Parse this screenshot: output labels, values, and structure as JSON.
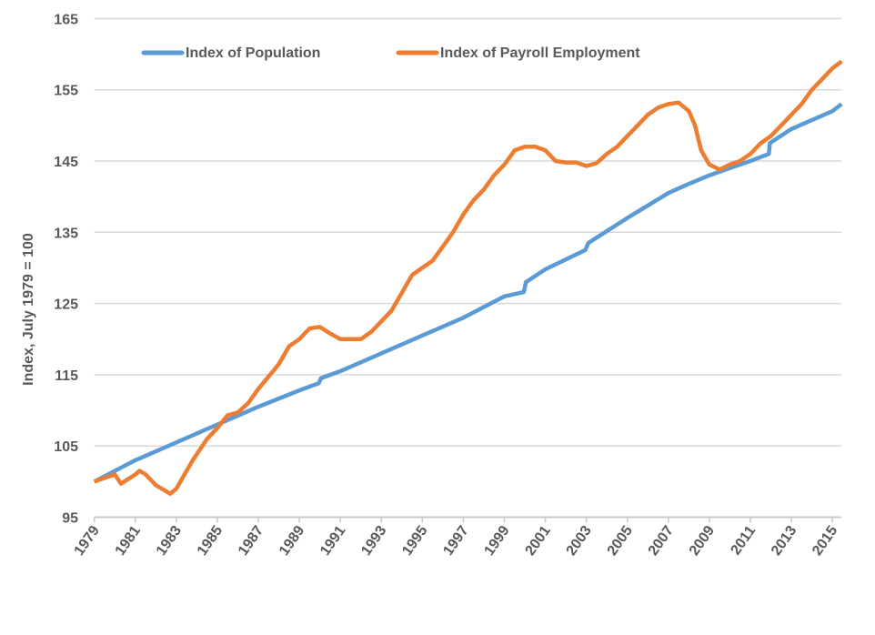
{
  "chart_data": {
    "type": "line",
    "title": "",
    "xlabel": "",
    "ylabel": "Index, July 1979 = 100",
    "ylim": [
      95,
      165
    ],
    "yticks": [
      95,
      105,
      115,
      125,
      135,
      145,
      155,
      165
    ],
    "xlim": [
      1979,
      2015.45
    ],
    "xticks": [
      "1979",
      "1981",
      "1983",
      "1985",
      "1987",
      "1989",
      "1991",
      "1993",
      "1995",
      "1997",
      "1999",
      "2001",
      "2003",
      "2005",
      "2007",
      "2009",
      "2011",
      "2013",
      "2015"
    ],
    "grid": true,
    "legend": "top-left",
    "series": [
      {
        "name": "Index of Population",
        "color": "#5B9BD5",
        "points": [
          [
            1979,
            100
          ],
          [
            1981,
            103
          ],
          [
            1983,
            105.5
          ],
          [
            1985,
            108
          ],
          [
            1987,
            110.5
          ],
          [
            1989,
            112.8
          ],
          [
            1989.95,
            113.8
          ],
          [
            1990.05,
            114.5
          ],
          [
            1991,
            115.5
          ],
          [
            1993,
            118
          ],
          [
            1995,
            120.5
          ],
          [
            1997,
            123
          ],
          [
            1999,
            126
          ],
          [
            1999.95,
            126.6
          ],
          [
            2000.05,
            128
          ],
          [
            2001,
            129.8
          ],
          [
            2002.95,
            132.5
          ],
          [
            2003.1,
            133.5
          ],
          [
            2005,
            137
          ],
          [
            2007,
            140.5
          ],
          [
            2008,
            141.8
          ],
          [
            2009,
            143
          ],
          [
            2010,
            144
          ],
          [
            2011,
            145
          ],
          [
            2011.9,
            146
          ],
          [
            2011.95,
            147.5
          ],
          [
            2013,
            149.5
          ],
          [
            2015,
            152
          ],
          [
            2015.45,
            153
          ]
        ]
      },
      {
        "name": "Index of Payroll Employment",
        "color": "#ED7D31",
        "points": [
          [
            1979,
            100
          ],
          [
            1979.5,
            100.5
          ],
          [
            1980,
            101
          ],
          [
            1980.3,
            99.7
          ],
          [
            1981,
            101
          ],
          [
            1981.2,
            101.5
          ],
          [
            1981.5,
            101
          ],
          [
            1982,
            99.5
          ],
          [
            1982.7,
            98.3
          ],
          [
            1983,
            99
          ],
          [
            1983.3,
            100.5
          ],
          [
            1983.8,
            103
          ],
          [
            1984.5,
            106
          ],
          [
            1985,
            107.5
          ],
          [
            1985.5,
            109.3
          ],
          [
            1986,
            109.7
          ],
          [
            1986.5,
            111
          ],
          [
            1987,
            113
          ],
          [
            1988,
            116.5
          ],
          [
            1988.5,
            119
          ],
          [
            1989,
            120
          ],
          [
            1989.5,
            121.5
          ],
          [
            1990,
            121.7
          ],
          [
            1990.5,
            120.8
          ],
          [
            1991,
            120
          ],
          [
            1992,
            120
          ],
          [
            1992.5,
            121
          ],
          [
            1993,
            122.5
          ],
          [
            1993.5,
            124
          ],
          [
            1994,
            126.5
          ],
          [
            1994.5,
            129
          ],
          [
            1995,
            130
          ],
          [
            1995.5,
            131
          ],
          [
            1996,
            133
          ],
          [
            1996.5,
            135
          ],
          [
            1997,
            137.5
          ],
          [
            1997.5,
            139.5
          ],
          [
            1998,
            141
          ],
          [
            1998.5,
            143
          ],
          [
            1999,
            144.5
          ],
          [
            1999.5,
            146.5
          ],
          [
            2000,
            147
          ],
          [
            2000.5,
            147
          ],
          [
            2001,
            146.5
          ],
          [
            2001.5,
            145
          ],
          [
            2002,
            144.8
          ],
          [
            2002.5,
            144.8
          ],
          [
            2003,
            144.3
          ],
          [
            2003.5,
            144.7
          ],
          [
            2004,
            146
          ],
          [
            2004.5,
            147
          ],
          [
            2005,
            148.5
          ],
          [
            2005.5,
            150
          ],
          [
            2006,
            151.5
          ],
          [
            2006.5,
            152.5
          ],
          [
            2007,
            153
          ],
          [
            2007.5,
            153.2
          ],
          [
            2008,
            152
          ],
          [
            2008.3,
            150
          ],
          [
            2008.6,
            146.5
          ],
          [
            2009,
            144.5
          ],
          [
            2009.5,
            143.8
          ],
          [
            2010,
            144.5
          ],
          [
            2010.5,
            145
          ],
          [
            2011,
            146
          ],
          [
            2011.5,
            147.5
          ],
          [
            2012,
            148.5
          ],
          [
            2012.5,
            150
          ],
          [
            2013,
            151.5
          ],
          [
            2013.5,
            153
          ],
          [
            2014,
            155
          ],
          [
            2014.5,
            156.5
          ],
          [
            2015,
            158
          ],
          [
            2015.45,
            159
          ]
        ]
      }
    ]
  }
}
